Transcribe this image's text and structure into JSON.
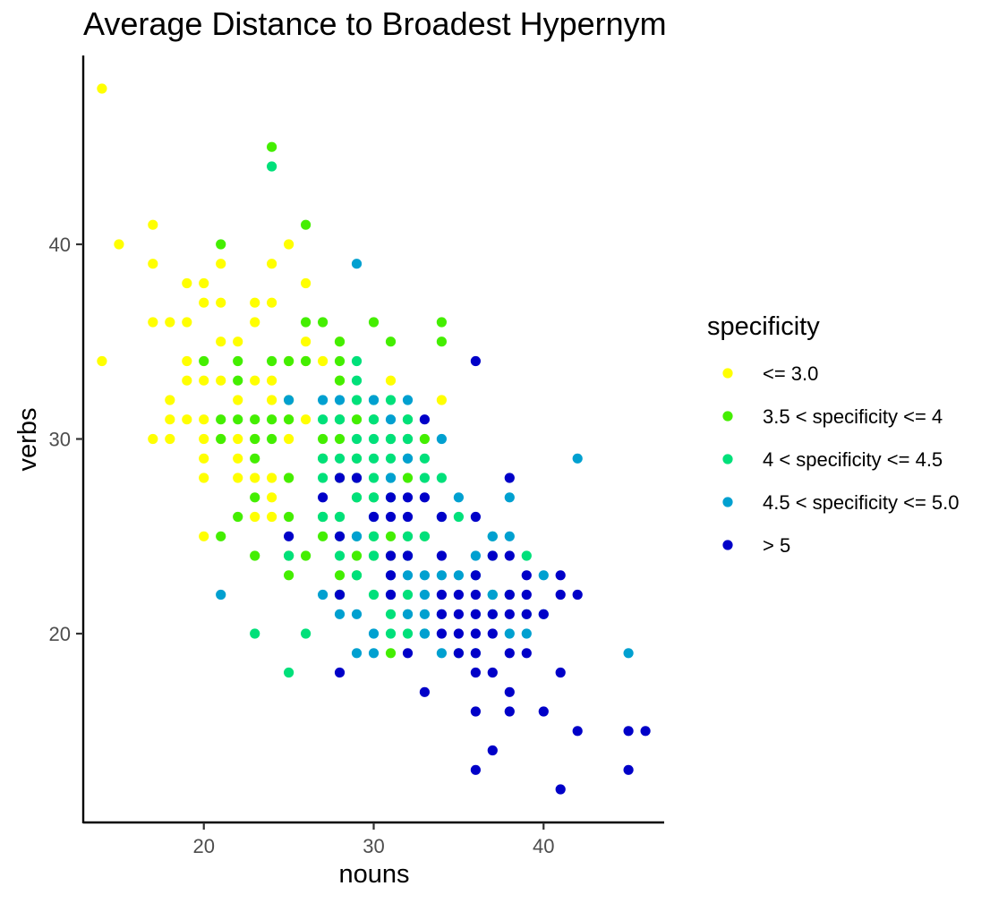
{
  "chart_data": {
    "type": "scatter",
    "title": "Average Distance to Broadest Hypernym",
    "xlabel": "nouns",
    "ylabel": "verbs",
    "xlim": [
      12.9,
      47.1
    ],
    "ylim": [
      10.3,
      49.7
    ],
    "xticks": [
      20,
      30,
      40
    ],
    "yticks": [
      20,
      30,
      40
    ],
    "grid": false,
    "legend": {
      "title": "specificity",
      "placement": "right"
    },
    "series": [
      {
        "name": "<= 3.0",
        "color": "#ffff00",
        "points": [
          [
            14,
            48
          ],
          [
            14,
            34
          ],
          [
            15,
            40
          ],
          [
            17,
            41
          ],
          [
            17,
            39
          ],
          [
            17,
            36
          ],
          [
            17,
            30
          ],
          [
            18,
            36
          ],
          [
            18,
            32
          ],
          [
            18,
            31
          ],
          [
            18,
            30
          ],
          [
            19,
            38
          ],
          [
            19,
            36
          ],
          [
            19,
            34
          ],
          [
            19,
            33
          ],
          [
            19,
            31
          ],
          [
            20,
            38
          ],
          [
            20,
            37
          ],
          [
            20,
            33
          ],
          [
            20,
            31
          ],
          [
            20,
            30
          ],
          [
            20,
            29
          ],
          [
            20,
            28
          ],
          [
            20,
            25
          ],
          [
            21,
            39
          ],
          [
            21,
            37
          ],
          [
            21,
            35
          ],
          [
            21,
            33
          ],
          [
            21,
            30
          ],
          [
            22,
            35
          ],
          [
            22,
            32
          ],
          [
            22,
            30
          ],
          [
            22,
            29
          ],
          [
            22,
            28
          ],
          [
            23,
            37
          ],
          [
            23,
            36
          ],
          [
            23,
            33
          ],
          [
            23,
            30
          ],
          [
            23,
            28
          ],
          [
            23,
            26
          ],
          [
            24,
            39
          ],
          [
            24,
            37
          ],
          [
            24,
            33
          ],
          [
            24,
            32
          ],
          [
            24,
            28
          ],
          [
            24,
            27
          ],
          [
            24,
            26
          ],
          [
            25,
            40
          ],
          [
            25,
            34
          ],
          [
            25,
            32
          ],
          [
            25,
            31
          ],
          [
            25,
            30
          ],
          [
            25,
            28
          ],
          [
            26,
            38
          ],
          [
            26,
            35
          ],
          [
            26,
            34
          ],
          [
            26,
            31
          ],
          [
            27,
            34
          ],
          [
            28,
            35
          ],
          [
            28,
            33
          ],
          [
            31,
            33
          ],
          [
            34,
            32
          ]
        ]
      },
      {
        "name": "3.5 < specificity <= 4",
        "color": "#44ee00",
        "points": [
          [
            20,
            34
          ],
          [
            21,
            40
          ],
          [
            21,
            31
          ],
          [
            21,
            30
          ],
          [
            21,
            25
          ],
          [
            22,
            34
          ],
          [
            22,
            33
          ],
          [
            22,
            31
          ],
          [
            22,
            26
          ],
          [
            23,
            31
          ],
          [
            23,
            30
          ],
          [
            23,
            29
          ],
          [
            23,
            27
          ],
          [
            23,
            24
          ],
          [
            24,
            45
          ],
          [
            24,
            34
          ],
          [
            24,
            31
          ],
          [
            24,
            30
          ],
          [
            25,
            34
          ],
          [
            25,
            31
          ],
          [
            25,
            28
          ],
          [
            25,
            26
          ],
          [
            25,
            24
          ],
          [
            25,
            23
          ],
          [
            26,
            41
          ],
          [
            26,
            36
          ],
          [
            26,
            34
          ],
          [
            26,
            24
          ],
          [
            27,
            36
          ],
          [
            27,
            30
          ],
          [
            27,
            29
          ],
          [
            27,
            26
          ],
          [
            27,
            25
          ],
          [
            28,
            35
          ],
          [
            28,
            34
          ],
          [
            28,
            33
          ],
          [
            28,
            31
          ],
          [
            28,
            30
          ],
          [
            28,
            28
          ],
          [
            28,
            26
          ],
          [
            28,
            23
          ],
          [
            28,
            22
          ],
          [
            29,
            31
          ],
          [
            29,
            29
          ],
          [
            29,
            27
          ],
          [
            29,
            24
          ],
          [
            29,
            23
          ],
          [
            30,
            36
          ],
          [
            30,
            31
          ],
          [
            30,
            27
          ],
          [
            30,
            25
          ],
          [
            30,
            24
          ],
          [
            31,
            35
          ],
          [
            31,
            30
          ],
          [
            31,
            25
          ],
          [
            31,
            24
          ],
          [
            31,
            19
          ],
          [
            32,
            31
          ],
          [
            32,
            30
          ],
          [
            32,
            28
          ],
          [
            32,
            25
          ],
          [
            33,
            30
          ],
          [
            33,
            25
          ],
          [
            34,
            36
          ],
          [
            34,
            35
          ]
        ]
      },
      {
        "name": "4 < specificity <= 4.5",
        "color": "#00e07a",
        "points": [
          [
            23,
            20
          ],
          [
            24,
            44
          ],
          [
            25,
            24
          ],
          [
            25,
            18
          ],
          [
            26,
            20
          ],
          [
            27,
            31
          ],
          [
            27,
            29
          ],
          [
            27,
            28
          ],
          [
            27,
            26
          ],
          [
            28,
            31
          ],
          [
            28,
            29
          ],
          [
            28,
            26
          ],
          [
            28,
            25
          ],
          [
            28,
            24
          ],
          [
            28,
            22
          ],
          [
            29,
            34
          ],
          [
            29,
            33
          ],
          [
            29,
            32
          ],
          [
            29,
            30
          ],
          [
            29,
            29
          ],
          [
            29,
            28
          ],
          [
            29,
            27
          ],
          [
            29,
            25
          ],
          [
            29,
            23
          ],
          [
            30,
            32
          ],
          [
            30,
            31
          ],
          [
            30,
            30
          ],
          [
            30,
            29
          ],
          [
            30,
            28
          ],
          [
            30,
            27
          ],
          [
            30,
            25
          ],
          [
            30,
            24
          ],
          [
            30,
            22
          ],
          [
            31,
            32
          ],
          [
            31,
            30
          ],
          [
            31,
            29
          ],
          [
            31,
            28
          ],
          [
            31,
            27
          ],
          [
            31,
            21
          ],
          [
            31,
            20
          ],
          [
            32,
            31
          ],
          [
            32,
            30
          ],
          [
            32,
            29
          ],
          [
            32,
            25
          ],
          [
            32,
            24
          ],
          [
            32,
            22
          ],
          [
            32,
            21
          ],
          [
            32,
            20
          ],
          [
            33,
            29
          ],
          [
            33,
            28
          ],
          [
            33,
            25
          ],
          [
            33,
            20
          ],
          [
            34,
            28
          ],
          [
            35,
            26
          ],
          [
            35,
            19
          ],
          [
            37,
            25
          ],
          [
            37,
            24
          ],
          [
            37,
            22
          ],
          [
            37,
            21
          ],
          [
            38,
            22
          ],
          [
            39,
            24
          ],
          [
            39,
            21
          ]
        ]
      },
      {
        "name": "4.5 < specificity <= 5.0",
        "color": "#00a0d0",
        "points": [
          [
            21,
            22
          ],
          [
            25,
            32
          ],
          [
            27,
            32
          ],
          [
            27,
            22
          ],
          [
            28,
            32
          ],
          [
            28,
            21
          ],
          [
            29,
            39
          ],
          [
            29,
            25
          ],
          [
            29,
            21
          ],
          [
            29,
            19
          ],
          [
            30,
            32
          ],
          [
            30,
            26
          ],
          [
            30,
            20
          ],
          [
            30,
            19
          ],
          [
            31,
            31
          ],
          [
            31,
            28
          ],
          [
            31,
            23
          ],
          [
            31,
            22
          ],
          [
            32,
            32
          ],
          [
            32,
            29
          ],
          [
            32,
            24
          ],
          [
            32,
            23
          ],
          [
            32,
            21
          ],
          [
            33,
            23
          ],
          [
            33,
            22
          ],
          [
            33,
            21
          ],
          [
            33,
            20
          ],
          [
            34,
            30
          ],
          [
            34,
            26
          ],
          [
            34,
            23
          ],
          [
            34,
            21
          ],
          [
            34,
            19
          ],
          [
            35,
            27
          ],
          [
            35,
            23
          ],
          [
            36,
            24
          ],
          [
            36,
            23
          ],
          [
            36,
            21
          ],
          [
            36,
            19
          ],
          [
            37,
            25
          ],
          [
            37,
            22
          ],
          [
            38,
            27
          ],
          [
            38,
            25
          ],
          [
            38,
            20
          ],
          [
            39,
            20
          ],
          [
            40,
            23
          ],
          [
            40,
            21
          ],
          [
            42,
            29
          ],
          [
            45,
            19
          ]
        ]
      },
      {
        "name": "> 5",
        "color": "#0000c8",
        "points": [
          [
            25,
            25
          ],
          [
            27,
            27
          ],
          [
            28,
            28
          ],
          [
            28,
            25
          ],
          [
            28,
            22
          ],
          [
            28,
            18
          ],
          [
            29,
            28
          ],
          [
            30,
            26
          ],
          [
            31,
            27
          ],
          [
            31,
            26
          ],
          [
            31,
            24
          ],
          [
            31,
            23
          ],
          [
            31,
            22
          ],
          [
            32,
            27
          ],
          [
            32,
            26
          ],
          [
            32,
            24
          ],
          [
            32,
            19
          ],
          [
            33,
            31
          ],
          [
            33,
            27
          ],
          [
            33,
            17
          ],
          [
            34,
            26
          ],
          [
            34,
            24
          ],
          [
            34,
            22
          ],
          [
            34,
            21
          ],
          [
            34,
            20
          ],
          [
            35,
            22
          ],
          [
            35,
            21
          ],
          [
            35,
            20
          ],
          [
            35,
            19
          ],
          [
            36,
            34
          ],
          [
            36,
            26
          ],
          [
            36,
            23
          ],
          [
            36,
            22
          ],
          [
            36,
            21
          ],
          [
            36,
            20
          ],
          [
            36,
            19
          ],
          [
            36,
            18
          ],
          [
            36,
            16
          ],
          [
            36,
            13
          ],
          [
            37,
            24
          ],
          [
            37,
            21
          ],
          [
            37,
            20
          ],
          [
            37,
            18
          ],
          [
            37,
            14
          ],
          [
            38,
            28
          ],
          [
            38,
            24
          ],
          [
            38,
            22
          ],
          [
            38,
            21
          ],
          [
            38,
            19
          ],
          [
            38,
            17
          ],
          [
            38,
            16
          ],
          [
            39,
            23
          ],
          [
            39,
            22
          ],
          [
            39,
            21
          ],
          [
            39,
            19
          ],
          [
            40,
            21
          ],
          [
            40,
            16
          ],
          [
            41,
            23
          ],
          [
            41,
            22
          ],
          [
            41,
            18
          ],
          [
            41,
            12
          ],
          [
            42,
            22
          ],
          [
            42,
            15
          ],
          [
            45,
            15
          ],
          [
            45,
            13
          ],
          [
            46,
            15
          ]
        ]
      }
    ]
  }
}
